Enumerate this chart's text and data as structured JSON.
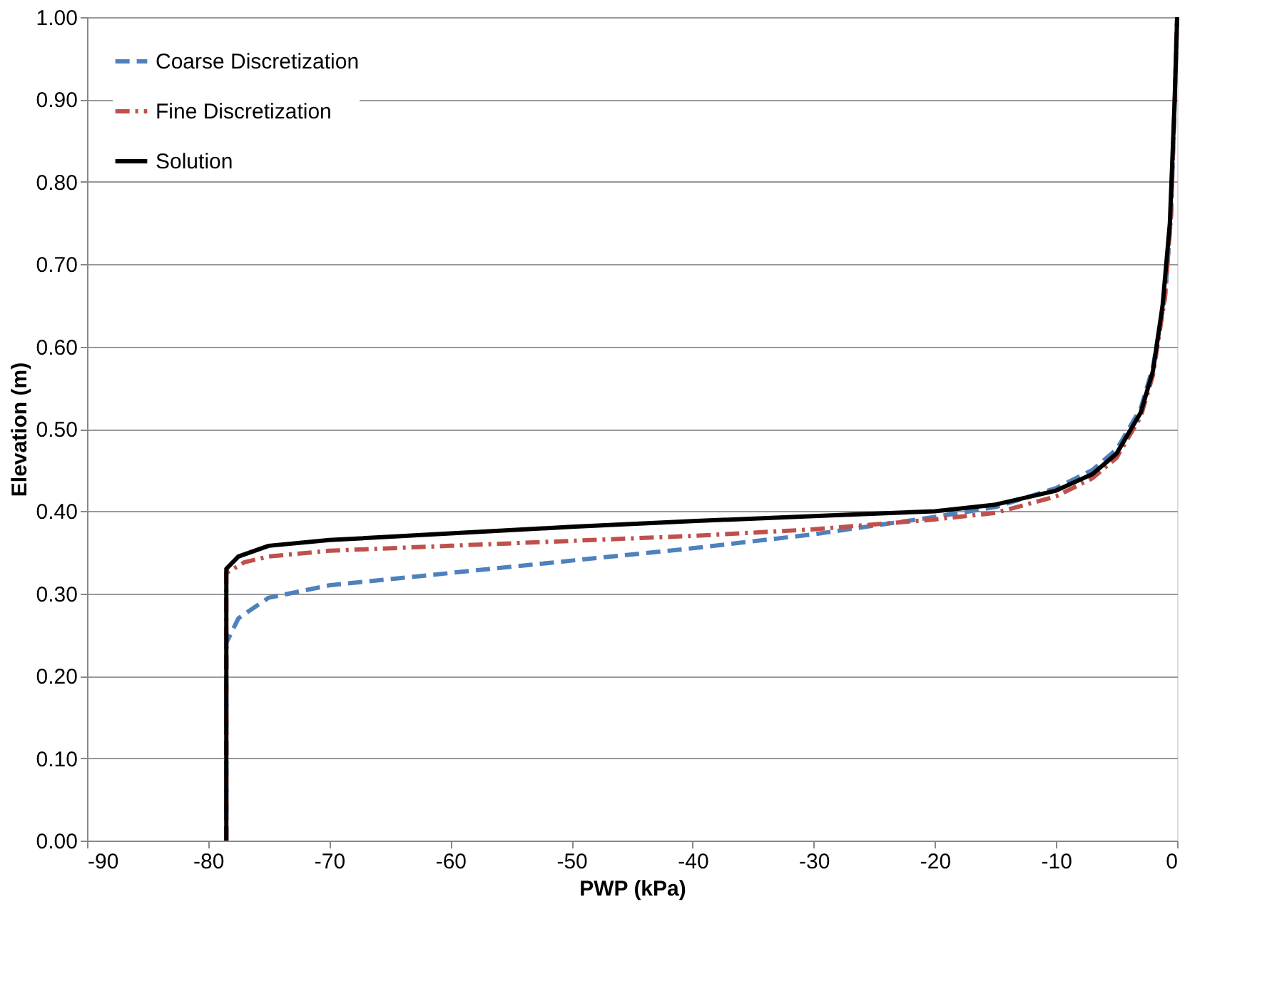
{
  "chart_data": {
    "type": "line",
    "xlabel": "PWP (kPa)",
    "ylabel": "Elevation (m)",
    "xlim": [
      -90,
      0
    ],
    "xticks": [
      -90,
      -80,
      -70,
      -60,
      -50,
      -40,
      -30,
      -20,
      -10,
      0
    ],
    "ylim": [
      0,
      1
    ],
    "yticks": [
      {
        "value": 0,
        "label": "0.00"
      },
      {
        "value": 0.1,
        "label": "0.10"
      },
      {
        "value": 0.2,
        "label": "0.20"
      },
      {
        "value": 0.3,
        "label": "0.30"
      },
      {
        "value": 0.4,
        "label": "0.40"
      },
      {
        "value": 0.5,
        "label": "0.50"
      },
      {
        "value": 0.6,
        "label": "0.60"
      },
      {
        "value": 0.7,
        "label": "0.70"
      },
      {
        "value": 0.8,
        "label": "0.80"
      },
      {
        "value": 0.9,
        "label": "0.90"
      },
      {
        "value": 1,
        "label": "1.00"
      }
    ],
    "grid": "y",
    "legend": "top left",
    "marker": "none",
    "series": [
      {
        "name": "Coarse Discretization",
        "color": "#4f81bd",
        "line_style": "dashed",
        "x": [
          -78.5,
          -78.5,
          -77.5,
          -75,
          -70,
          -60,
          -50,
          -40,
          -30,
          -20,
          -15,
          -10,
          -7,
          -5,
          -3,
          -2,
          -1,
          -0.5,
          -0.2,
          0
        ],
        "values": [
          0,
          0.24,
          0.27,
          0.295,
          0.31,
          0.325,
          0.34,
          0.355,
          0.372,
          0.393,
          0.405,
          0.428,
          0.45,
          0.475,
          0.525,
          0.575,
          0.66,
          0.76,
          0.9,
          1.0
        ]
      },
      {
        "name": "Fine Discretization",
        "color": "#c0504d",
        "line_style": "dashdot",
        "x": [
          -78.5,
          -78.5,
          -77,
          -75,
          -70,
          -60,
          -50,
          -40,
          -30,
          -20,
          -15,
          -10,
          -7,
          -5,
          -3,
          -2,
          -1,
          -0.5,
          -0.2,
          0
        ],
        "values": [
          0,
          0.325,
          0.338,
          0.345,
          0.352,
          0.358,
          0.364,
          0.37,
          0.378,
          0.39,
          0.398,
          0.418,
          0.44,
          0.465,
          0.515,
          0.565,
          0.66,
          0.76,
          0.9,
          1.0
        ]
      },
      {
        "name": "Solution",
        "color": "#000000",
        "line_style": "solid",
        "x": [
          -78.5,
          -78.5,
          -77.5,
          -75,
          -70,
          -60,
          -50,
          -40,
          -30,
          -20,
          -15,
          -10,
          -7,
          -5,
          -3,
          -2,
          -1.2,
          -0.6,
          -0.2,
          0
        ],
        "values": [
          0,
          0.33,
          0.345,
          0.358,
          0.365,
          0.373,
          0.381,
          0.388,
          0.394,
          0.4,
          0.408,
          0.425,
          0.445,
          0.47,
          0.52,
          0.57,
          0.65,
          0.75,
          0.9,
          1.0
        ]
      }
    ]
  }
}
